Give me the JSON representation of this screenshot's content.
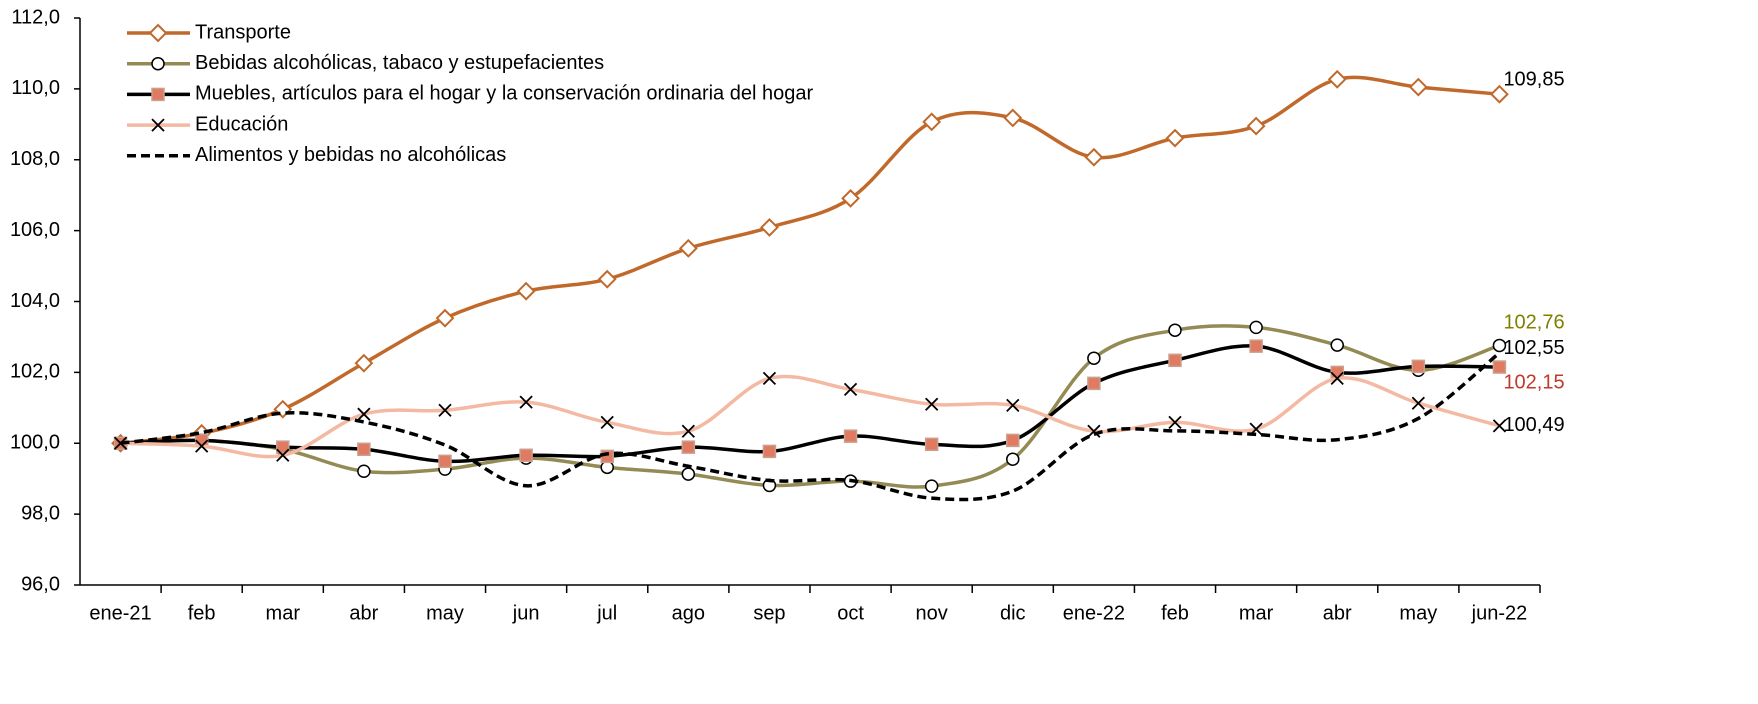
{
  "chart_data": {
    "type": "line",
    "categories": [
      "ene-21",
      "feb",
      "mar",
      "abr",
      "may",
      "jun",
      "jul",
      "ago",
      "sep",
      "oct",
      "nov",
      "dic",
      "ene-22",
      "feb",
      "mar",
      "abr",
      "may",
      "jun-22"
    ],
    "ylim": [
      96,
      112
    ],
    "yticks": [
      {
        "value": 96,
        "label": "96,0"
      },
      {
        "value": 98,
        "label": "98,0"
      },
      {
        "value": 100,
        "label": "100,0"
      },
      {
        "value": 102,
        "label": "102,0"
      },
      {
        "value": 104,
        "label": "104,0"
      },
      {
        "value": 106,
        "label": "106,0"
      },
      {
        "value": 108,
        "label": "108,0"
      },
      {
        "value": 110,
        "label": "110,0"
      },
      {
        "value": 112,
        "label": "112,0"
      }
    ],
    "legend": "upper-left",
    "series": [
      {
        "name": "Transporte",
        "color": "#c0692b",
        "marker": "diamond",
        "label_color": "#000000",
        "values": [
          100,
          100.28,
          100.96,
          102.26,
          103.53,
          104.29,
          104.63,
          105.5,
          106.09,
          106.91,
          109.07,
          109.18,
          108.07,
          108.61,
          108.95,
          110.27,
          110.05,
          109.85
        ],
        "value_labels": [
          null,
          null,
          null,
          null,
          null,
          null,
          null,
          null,
          null,
          null,
          null,
          null,
          null,
          null,
          null,
          null,
          null,
          "109,85"
        ]
      },
      {
        "name": "Bebidas alcohólicas, tabaco y estupefacientes",
        "color": "#948a54",
        "marker": "circle",
        "label_color": "#7f7f00",
        "values": [
          100,
          100.08,
          99.83,
          99.21,
          99.27,
          99.58,
          99.32,
          99.13,
          98.81,
          98.93,
          98.79,
          99.55,
          102.4,
          103.19,
          103.27,
          102.77,
          102.06,
          102.76
        ],
        "value_labels": [
          null,
          null,
          null,
          null,
          null,
          null,
          null,
          null,
          null,
          null,
          null,
          null,
          null,
          null,
          null,
          null,
          null,
          "102,76"
        ]
      },
      {
        "name": "Muebles, artículos para el hogar y la conservación ordinaria del hogar",
        "color": "#000000",
        "marker": "square",
        "label_color": "#c0392b",
        "values": [
          100,
          100.08,
          99.89,
          99.83,
          99.49,
          99.66,
          99.63,
          99.89,
          99.77,
          100.2,
          99.97,
          100.08,
          101.69,
          102.34,
          102.74,
          102,
          102.17,
          102.15
        ],
        "value_labels": [
          null,
          null,
          null,
          null,
          null,
          null,
          null,
          null,
          null,
          null,
          null,
          null,
          null,
          null,
          null,
          null,
          null,
          "102,15"
        ]
      },
      {
        "name": "Educación",
        "color": "#f4b9a2",
        "marker": "x",
        "label_color": "#000000",
        "values": [
          100,
          99.92,
          99.66,
          100.82,
          100.93,
          101.16,
          100.59,
          100.34,
          101.83,
          101.52,
          101.1,
          101.07,
          100.34,
          100.59,
          100.4,
          101.83,
          101.13,
          100.49
        ],
        "value_labels": [
          null,
          null,
          null,
          null,
          null,
          null,
          null,
          null,
          null,
          null,
          null,
          null,
          null,
          null,
          null,
          null,
          null,
          "100,49"
        ]
      },
      {
        "name": "Alimentos y bebidas no alcohólicas",
        "color": "#000000",
        "marker": "none",
        "dash": true,
        "label_color": "#000000",
        "values": [
          100,
          100.3,
          100.85,
          100.6,
          99.95,
          98.8,
          99.7,
          99.35,
          98.95,
          98.95,
          98.45,
          98.65,
          100.25,
          100.35,
          100.25,
          100.1,
          100.7,
          102.55
        ],
        "value_labels": [
          null,
          null,
          null,
          null,
          null,
          null,
          null,
          null,
          null,
          null,
          null,
          null,
          null,
          null,
          null,
          null,
          null,
          "102,55"
        ]
      }
    ]
  }
}
